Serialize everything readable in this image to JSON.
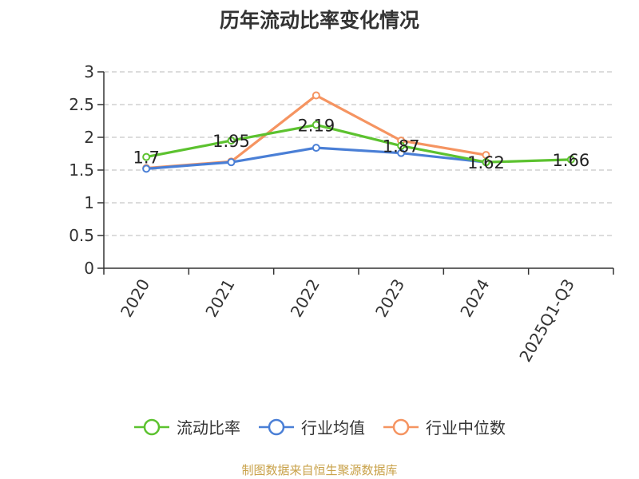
{
  "chart_data": {
    "type": "line",
    "title": "历年流动比率变化情况",
    "categories": [
      "2020",
      "2021",
      "2022",
      "2023",
      "2024",
      "2025Q1-Q3"
    ],
    "ylim": [
      0,
      3
    ],
    "yticks": [
      "0",
      "0.5",
      "1",
      "1.5",
      "2",
      "2.5",
      "3"
    ],
    "grid": true,
    "legend_position": "bottom",
    "series": [
      {
        "name": "流动比率",
        "color": "#5cc22f",
        "values": [
          1.7,
          1.95,
          2.19,
          1.87,
          1.62,
          1.66
        ],
        "labels": [
          "1.7",
          "1.95",
          "2.19",
          "1.87",
          "1.62",
          "1.66"
        ]
      },
      {
        "name": "行业均值",
        "color": "#4a7fd6",
        "values": [
          1.52,
          1.62,
          1.84,
          1.76,
          1.62,
          null
        ]
      },
      {
        "name": "行业中位数",
        "color": "#f59461",
        "values": [
          1.53,
          1.63,
          2.64,
          1.95,
          1.73,
          null
        ]
      }
    ]
  },
  "footer": {
    "source": "制图数据来自恒生聚源数据库"
  }
}
